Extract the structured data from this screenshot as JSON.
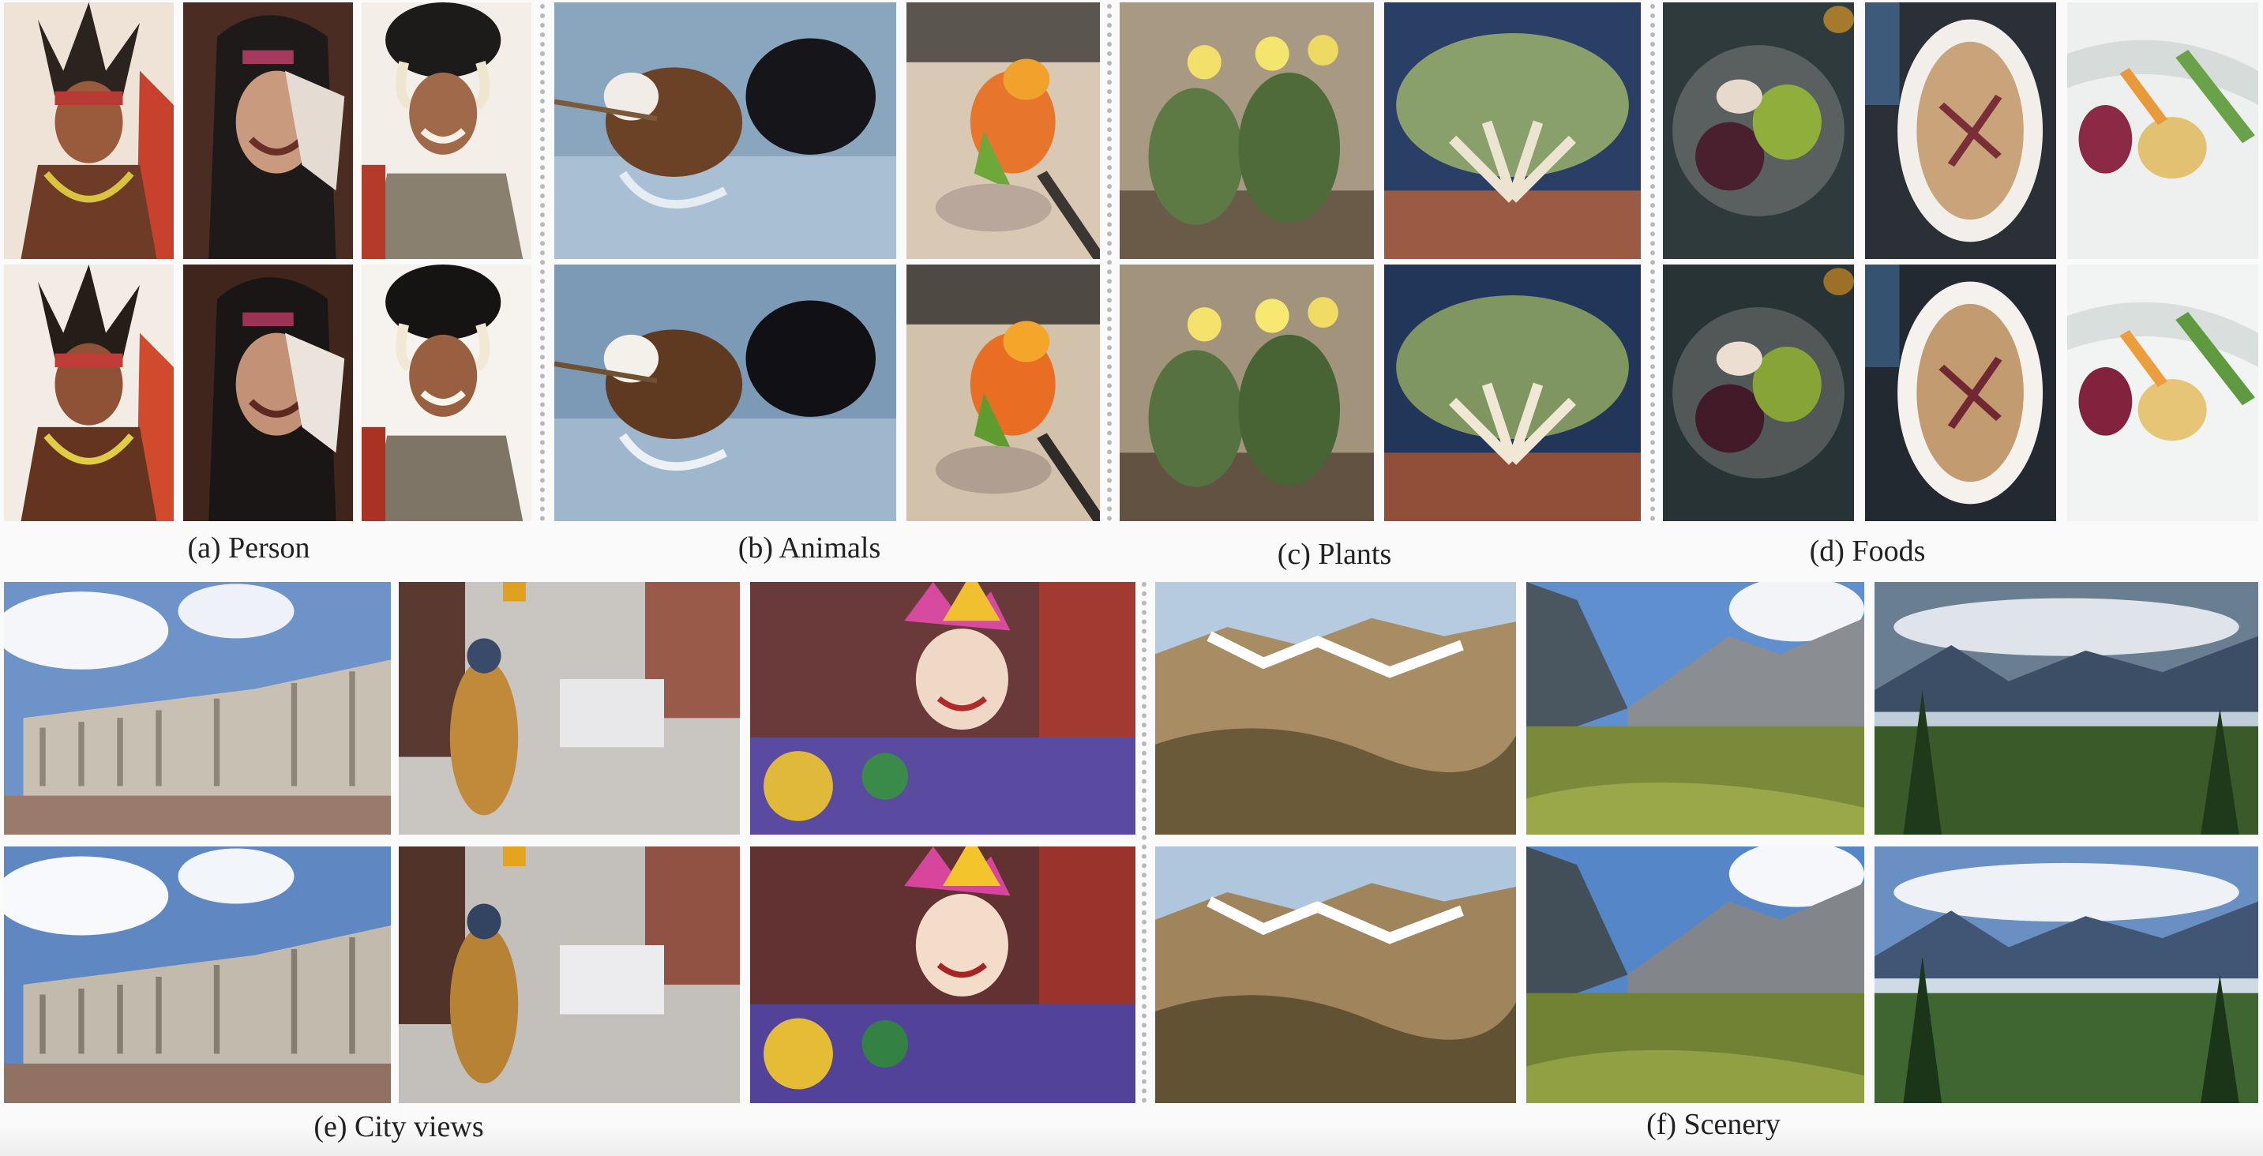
{
  "captions": {
    "person": "(a) Person",
    "animals": "(b) Animals",
    "plants": "(c) Plants",
    "foods": "(d) Foods",
    "city": "(e) City views",
    "scenery": "(f) Scenery"
  },
  "colors": {
    "background": "#fafafa",
    "separator": "#b9b9b9",
    "caption_text": "#222222"
  }
}
